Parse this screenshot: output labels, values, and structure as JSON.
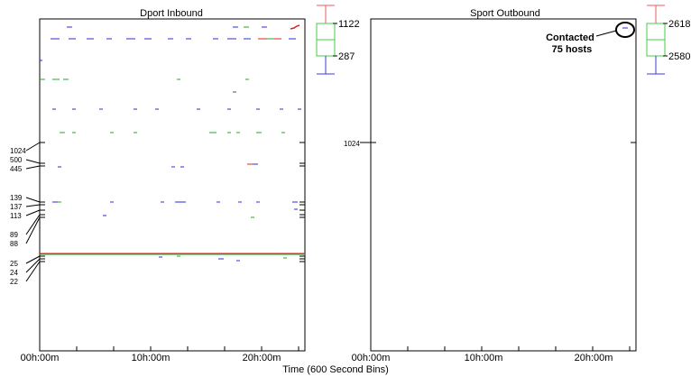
{
  "page": {
    "xlabel": "Time (600 Second Bins)"
  },
  "colors": {
    "blue": "#2b2bd6",
    "green": "#1faa1f",
    "red": "#e02020",
    "box_red": "#e85a5a",
    "box_green": "#44cc44",
    "box_blue": "#3b3bdc"
  },
  "chart_data": [
    {
      "type": "scatter",
      "title": "Dport Inbound",
      "x_ticks": [
        "00h:00m",
        "10h:00m",
        "20h:00m"
      ],
      "xlim": [
        "00h:00m",
        "24h:00m"
      ],
      "y_tick_labels": [
        "1024",
        "500",
        "445",
        "139",
        "137",
        "113",
        "89",
        "88",
        "25",
        "24",
        "22"
      ],
      "box_labels": [
        "1122",
        "287"
      ],
      "series": [
        {
          "color": "blue",
          "x": [
            2,
            3,
            5,
            6,
            8,
            9,
            11,
            13,
            15,
            17,
            19,
            20,
            22,
            0.3
          ],
          "y": [
            1122,
            1122,
            1122,
            1122,
            1122,
            1122,
            1122,
            1122,
            1122,
            1122,
            1122,
            1122,
            1122,
            1090
          ]
        },
        {
          "color": "green",
          "x": [
            0.3,
            1.2,
            2.0,
            8.8,
            19.5,
            22.0
          ],
          "y": [
            1050,
            1050,
            1050,
            1050,
            1050,
            1122
          ]
        },
        {
          "color": "blue",
          "x": [
            1.0,
            3.0,
            5.5,
            8.5,
            10.5,
            14.5,
            17.0,
            19.5,
            21.5,
            23.0
          ],
          "y": [
            1040,
            1040,
            1040,
            1040,
            1040,
            1040,
            1040,
            1040,
            1040,
            1040
          ]
        },
        {
          "color": "green",
          "x": [
            1.8,
            3.0,
            6.5,
            8.5,
            15.5,
            17.0,
            19.5,
            21.0,
            22.5
          ],
          "y": [
            1030,
            1030,
            1030,
            1030,
            1030,
            1030,
            1030,
            1030,
            1030
          ]
        },
        {
          "color": "blue",
          "x": [
            1.5,
            12.0,
            18.5,
            19.0,
            17.5
          ],
          "y": [
            500,
            500,
            500,
            500,
            500
          ]
        },
        {
          "color": "blue",
          "x": [
            1.3,
            5.5,
            10.5,
            12.8,
            18.0,
            19.5,
            22.8,
            23.5,
            6.0,
            19.0
          ],
          "y": [
            139,
            139,
            139,
            139,
            139,
            139,
            139,
            139,
            113,
            113
          ]
        },
        {
          "color": "green",
          "x": [
            0,
            24
          ],
          "y": [
            25,
            25
          ]
        },
        {
          "color": "red",
          "x": [
            23.0,
            23.8
          ],
          "y": [
            1122,
            1122
          ]
        }
      ]
    },
    {
      "type": "scatter",
      "title": "Sport Outbound",
      "x_ticks": [
        "00h:00m",
        "10h:00m",
        "20h:00m"
      ],
      "xlim": [
        "00h:00m",
        "24h:00m"
      ],
      "y_tick_labels": [
        "1024"
      ],
      "box_labels": [
        "2618",
        "2580"
      ],
      "annotations": [
        "Contacted",
        "75 hosts"
      ]
    }
  ]
}
